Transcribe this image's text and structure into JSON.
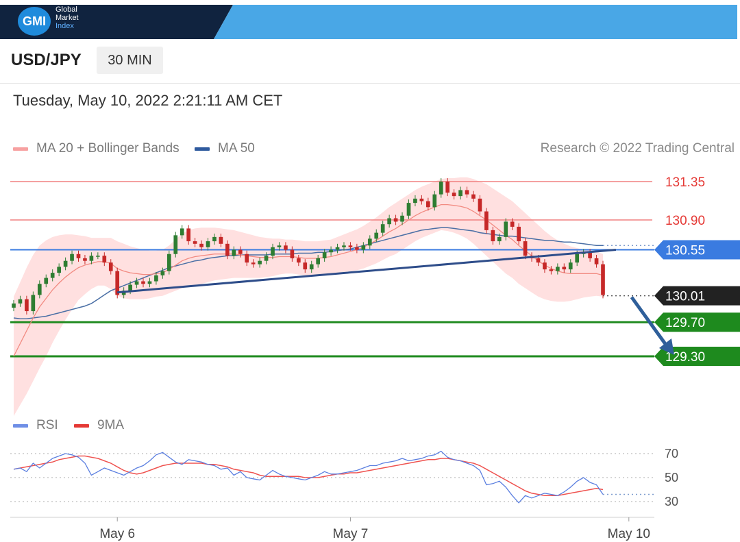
{
  "brand": {
    "logo": "GMI",
    "line1": "Global",
    "line2": "Market",
    "line3": "Index"
  },
  "header": {
    "pair": "USD/JPY",
    "interval": "30 MIN",
    "datetime": "Tuesday, May 10, 2022 2:21:11 AM CET"
  },
  "legend": {
    "ma20": "MA 20 + Bollinger Bands",
    "ma50": "MA 50",
    "credit": "Research © 2022 Trading Central"
  },
  "rsi_legend": {
    "rsi": "RSI",
    "ma9": "9MA"
  },
  "colors": {
    "resistance": "#f08080",
    "pivot": "#3a7be0",
    "support": "#1e8a1e",
    "current": "#222222",
    "up": "#2e7d32",
    "down": "#c62828",
    "ma50": "#4a6fa5",
    "bollinger": "#ffd6d6",
    "rsi": "#5b7fe0",
    "rsi_ma": "#ef5350",
    "arrow": "#2f5f9a",
    "trendline": "#2e4d8a"
  },
  "chart_data": [
    {
      "type": "line",
      "title": "USD/JPY",
      "ylim": [
        128.65,
        131.6
      ],
      "x_ticks": [
        {
          "index": 16,
          "label": "May 6"
        },
        {
          "index": 52,
          "label": "May 7"
        },
        {
          "index": 95,
          "label": "May 10"
        }
      ],
      "levels": [
        {
          "value": 131.35,
          "label": "131.35",
          "kind": "resistance"
        },
        {
          "value": 130.9,
          "label": "130.90",
          "kind": "resistance"
        },
        {
          "value": 130.55,
          "label": "130.55",
          "kind": "pivot"
        },
        {
          "value": 130.01,
          "label": "130.01",
          "kind": "current"
        },
        {
          "value": 129.7,
          "label": "129.70",
          "kind": "support"
        },
        {
          "value": 129.3,
          "label": "129.30",
          "kind": "support"
        }
      ],
      "close": [
        129.92,
        129.97,
        129.83,
        130.02,
        130.15,
        130.22,
        130.28,
        130.35,
        130.42,
        130.5,
        130.45,
        130.42,
        130.48,
        130.48,
        130.4,
        130.3,
        130.02,
        130.07,
        130.14,
        130.18,
        130.15,
        130.18,
        130.25,
        130.3,
        130.5,
        130.72,
        130.8,
        130.65,
        130.62,
        130.58,
        130.65,
        130.7,
        130.62,
        130.48,
        130.55,
        130.5,
        130.4,
        130.38,
        130.42,
        130.48,
        130.58,
        130.6,
        130.55,
        130.45,
        130.4,
        130.32,
        130.38,
        130.45,
        130.52,
        130.55,
        130.58,
        130.6,
        130.58,
        130.55,
        130.6,
        130.68,
        130.75,
        130.85,
        130.92,
        130.88,
        130.95,
        131.1,
        131.15,
        131.12,
        131.05,
        131.2,
        131.35,
        131.22,
        131.18,
        131.25,
        131.2,
        131.15,
        131.0,
        130.78,
        130.65,
        130.7,
        130.88,
        130.82,
        130.65,
        130.48,
        130.45,
        130.4,
        130.32,
        130.3,
        130.35,
        130.32,
        130.4,
        130.5,
        130.52,
        130.45,
        130.38,
        130.02
      ],
      "ma20": [
        129.3,
        129.45,
        129.6,
        129.75,
        129.88,
        129.98,
        130.08,
        130.16,
        130.23,
        130.29,
        130.34,
        130.37,
        130.39,
        130.41,
        130.41,
        130.39,
        130.33,
        130.3,
        130.28,
        130.27,
        130.26,
        130.26,
        130.27,
        130.28,
        130.32,
        130.37,
        130.42,
        130.45,
        130.47,
        130.48,
        130.49,
        130.5,
        130.5,
        130.5,
        130.5,
        130.49,
        130.48,
        130.47,
        130.46,
        130.46,
        130.46,
        130.47,
        130.47,
        130.47,
        130.46,
        130.45,
        130.45,
        130.45,
        130.46,
        130.47,
        130.49,
        130.51,
        130.53,
        130.55,
        130.58,
        130.62,
        130.66,
        130.71,
        130.76,
        130.8,
        130.85,
        130.9,
        130.95,
        130.99,
        131.02,
        131.05,
        131.08,
        131.08,
        131.07,
        131.06,
        131.04,
        131.0,
        130.95,
        130.9,
        130.84,
        130.78,
        130.72,
        130.67,
        130.6,
        130.54,
        130.48,
        130.42,
        130.37,
        130.33,
        130.3,
        130.28,
        130.27,
        130.27,
        130.27,
        130.27,
        130.27,
        130.25
      ],
      "ma50": [
        129.75,
        129.74,
        129.74,
        129.75,
        129.76,
        129.77,
        129.79,
        129.81,
        129.83,
        129.85,
        129.87,
        129.89,
        129.92,
        129.97,
        130.02,
        130.07,
        130.1,
        130.13,
        130.16,
        130.19,
        130.22,
        130.25,
        130.28,
        130.31,
        130.34,
        130.36,
        130.38,
        130.4,
        130.42,
        130.43,
        130.45,
        130.46,
        130.47,
        130.48,
        130.48,
        130.49,
        130.49,
        130.49,
        130.49,
        130.49,
        130.5,
        130.5,
        130.5,
        130.5,
        130.51,
        130.51,
        130.51,
        130.52,
        130.52,
        130.53,
        130.54,
        130.55,
        130.56,
        130.58,
        130.6,
        130.62,
        130.64,
        130.66,
        130.68,
        130.7,
        130.72,
        130.74,
        130.76,
        130.78,
        130.79,
        130.8,
        130.81,
        130.81,
        130.8,
        130.79,
        130.78,
        130.77,
        130.75,
        130.74,
        130.73,
        130.72,
        130.71,
        130.71,
        130.7,
        130.69,
        130.68,
        130.67,
        130.66,
        130.66,
        130.65,
        130.64,
        130.64,
        130.63,
        130.62,
        130.61,
        130.6,
        130.6
      ],
      "bb_width": [
        0.7,
        0.72,
        0.74,
        0.74,
        0.72,
        0.68,
        0.62,
        0.56,
        0.5,
        0.44,
        0.38,
        0.34,
        0.3,
        0.28,
        0.28,
        0.3,
        0.32,
        0.32,
        0.31,
        0.3,
        0.29,
        0.28,
        0.27,
        0.27,
        0.28,
        0.3,
        0.32,
        0.33,
        0.33,
        0.33,
        0.32,
        0.31,
        0.3,
        0.29,
        0.28,
        0.27,
        0.26,
        0.25,
        0.24,
        0.23,
        0.22,
        0.21,
        0.2,
        0.2,
        0.2,
        0.2,
        0.2,
        0.2,
        0.2,
        0.2,
        0.21,
        0.22,
        0.23,
        0.24,
        0.25,
        0.26,
        0.27,
        0.28,
        0.29,
        0.3,
        0.3,
        0.3,
        0.3,
        0.3,
        0.3,
        0.3,
        0.3,
        0.31,
        0.32,
        0.34,
        0.36,
        0.38,
        0.4,
        0.42,
        0.43,
        0.44,
        0.45,
        0.45,
        0.45,
        0.44,
        0.43,
        0.42,
        0.4,
        0.38,
        0.36,
        0.34,
        0.32,
        0.3,
        0.28,
        0.27,
        0.26,
        0.25
      ],
      "trendline": [
        [
          16,
          130.05
        ],
        [
          93,
          130.55
        ]
      ],
      "projection": [
        [
          95,
          130.01
        ],
        [
          102,
          129.3
        ]
      ]
    },
    {
      "type": "line",
      "title": "RSI",
      "ylim": [
        25,
        78
      ],
      "y_ticks": [
        70,
        50,
        30
      ],
      "rsi": [
        57,
        58,
        55,
        62,
        58,
        62,
        66,
        68,
        70,
        69,
        67,
        62,
        52,
        55,
        58,
        56,
        54,
        52,
        55,
        58,
        60,
        64,
        69,
        71,
        67,
        63,
        61,
        65,
        64,
        63,
        61,
        60,
        57,
        58,
        52,
        55,
        50,
        49,
        48,
        52,
        56,
        53,
        51,
        50,
        49,
        48,
        50,
        52,
        55,
        53,
        53,
        54,
        55,
        56,
        58,
        60,
        60,
        62,
        63,
        64,
        66,
        64,
        65,
        66,
        68,
        69,
        72,
        67,
        65,
        64,
        62,
        60,
        56,
        44,
        45,
        47,
        42,
        35,
        29,
        35,
        33,
        35,
        37,
        36,
        35,
        38,
        42,
        47,
        50,
        46,
        44,
        36
      ],
      "rsi_ma": [
        57,
        58,
        59,
        60,
        61,
        62,
        63,
        65,
        66,
        67,
        68,
        68,
        67,
        66,
        64,
        62,
        59,
        56,
        54,
        53,
        54,
        56,
        58,
        60,
        61,
        62,
        62,
        62,
        62,
        62,
        61,
        61,
        60,
        59,
        57,
        56,
        55,
        54,
        52,
        51,
        51,
        51,
        51,
        51,
        51,
        50,
        50,
        50,
        51,
        52,
        53,
        53,
        54,
        54,
        55,
        56,
        57,
        58,
        59,
        60,
        61,
        62,
        63,
        64,
        65,
        65,
        66,
        66,
        65,
        64,
        63,
        62,
        60,
        57,
        54,
        51,
        48,
        45,
        42,
        39,
        37,
        36,
        35,
        35,
        35,
        36,
        37,
        38,
        39,
        40,
        41,
        40
      ]
    }
  ]
}
